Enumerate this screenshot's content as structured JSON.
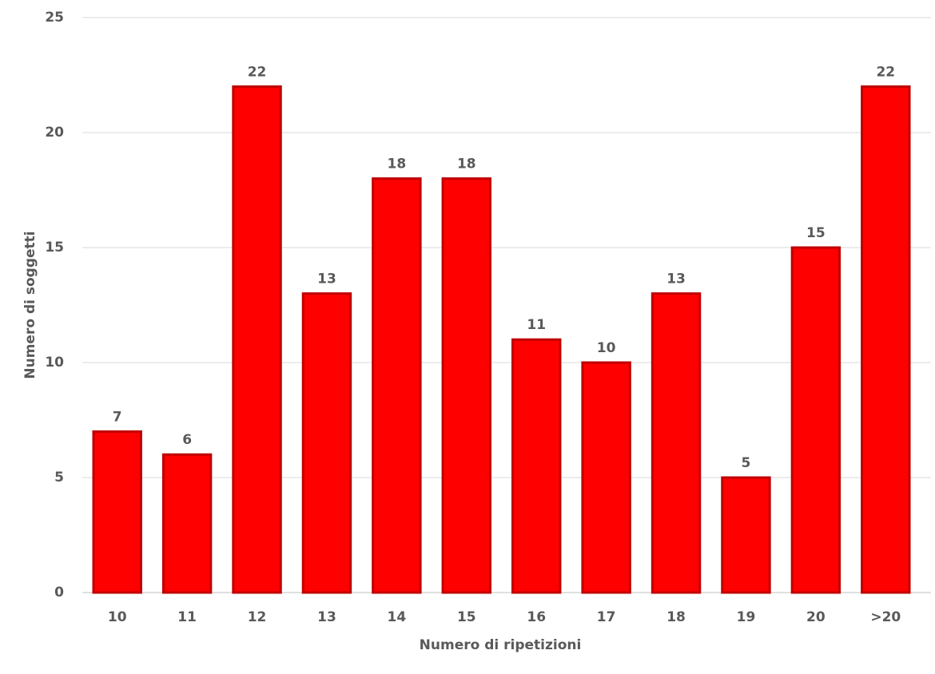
{
  "chart_data": {
    "type": "bar",
    "x_label": "Numero di ripetizioni",
    "y_label": "Numero di soggetti",
    "categories": [
      "10",
      "11",
      "12",
      "13",
      "14",
      "15",
      "16",
      "17",
      "18",
      "19",
      "20",
      ">20"
    ],
    "values": [
      7,
      6,
      22,
      13,
      18,
      18,
      11,
      10,
      13,
      5,
      15,
      22
    ],
    "color": "#ff0000",
    "ylim": [
      0,
      25
    ],
    "yticks": [
      0,
      5,
      10,
      15,
      20,
      25
    ],
    "grid": true
  }
}
